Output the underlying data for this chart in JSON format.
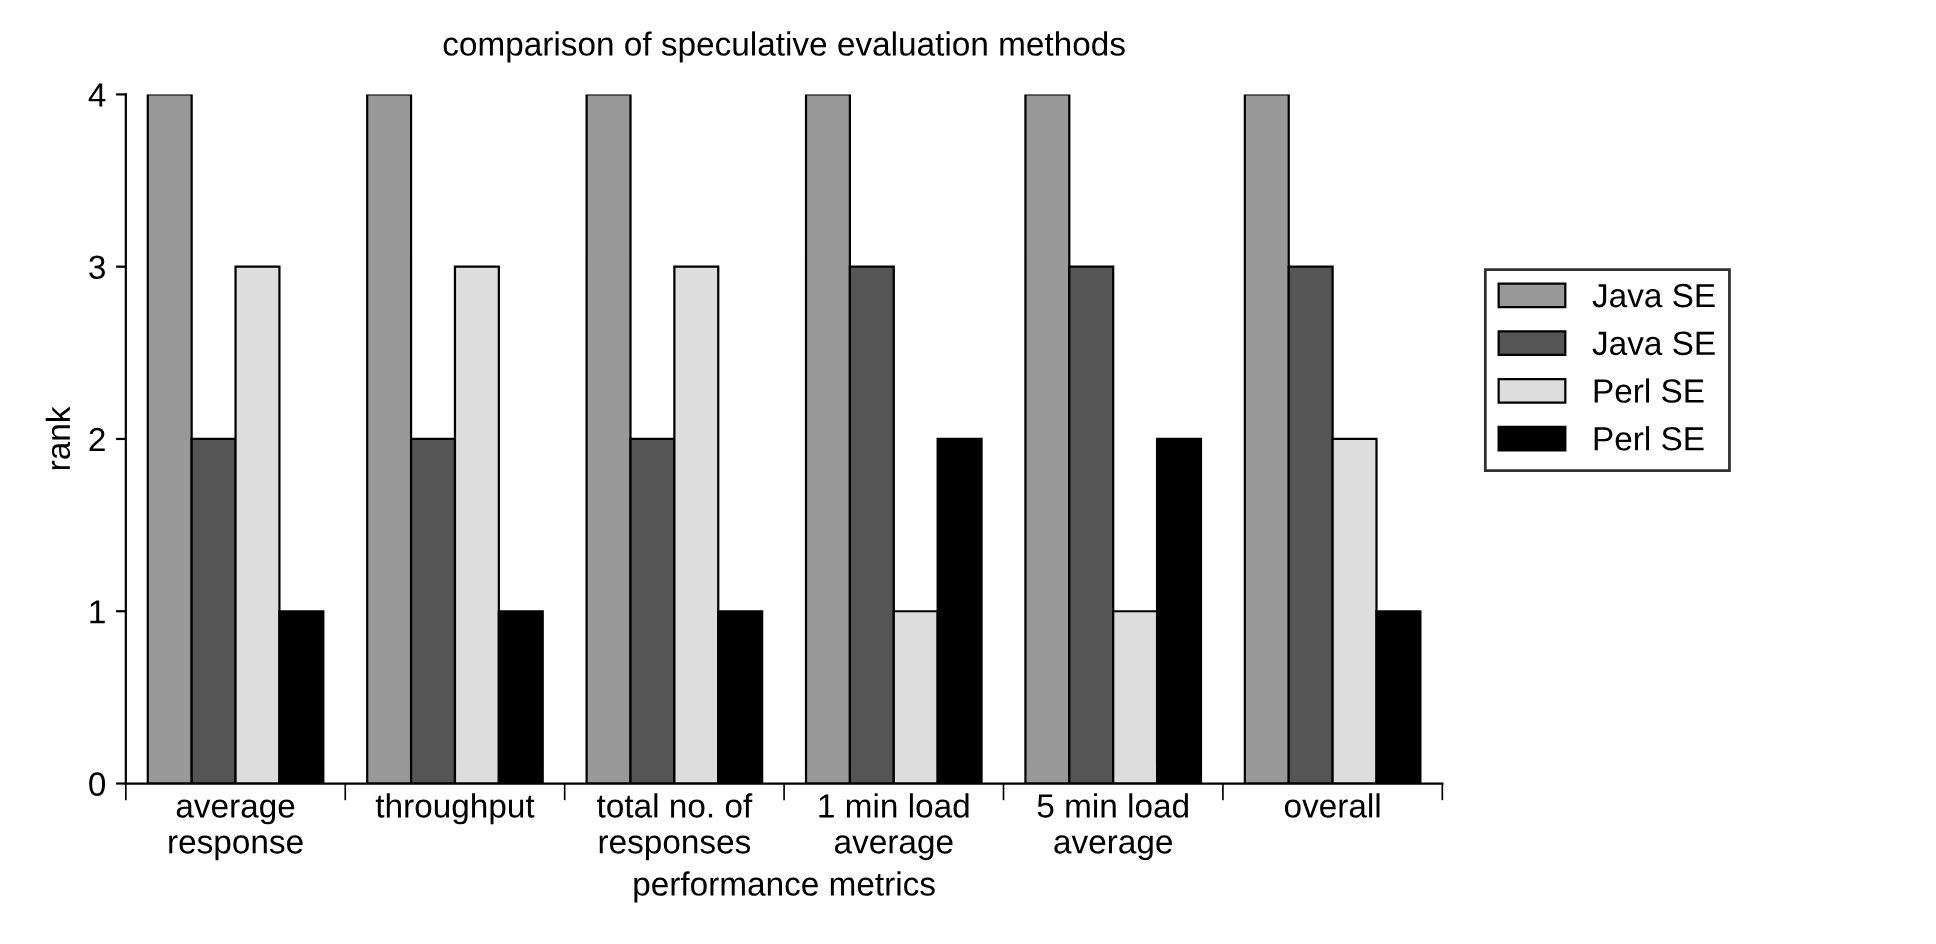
{
  "chart_data": {
    "type": "bar",
    "title": "comparison of speculative evaluation methods",
    "xlabel": "performance metrics",
    "ylabel": "rank",
    "categories": [
      "average\nresponse",
      "throughput",
      "total no. of\nresponses",
      "1 min load\naverage",
      "5 min load\naverage",
      "overall"
    ],
    "series": [
      {
        "name": "Java SE",
        "color": "#999999",
        "values": [
          4,
          4,
          4,
          4,
          4,
          4
        ]
      },
      {
        "name": "Java SE",
        "color": "#555555",
        "values": [
          2,
          2,
          2,
          3,
          3,
          3
        ]
      },
      {
        "name": "Perl SE",
        "color": "#dddddd",
        "values": [
          3,
          3,
          3,
          1,
          1,
          2
        ]
      },
      {
        "name": "Perl SE",
        "color": "#000000",
        "values": [
          1,
          1,
          1,
          2,
          2,
          1
        ]
      }
    ],
    "ylim": [
      0,
      4
    ],
    "yticks": [
      0,
      1,
      2,
      3,
      4
    ],
    "legend": "right",
    "grid": false
  }
}
